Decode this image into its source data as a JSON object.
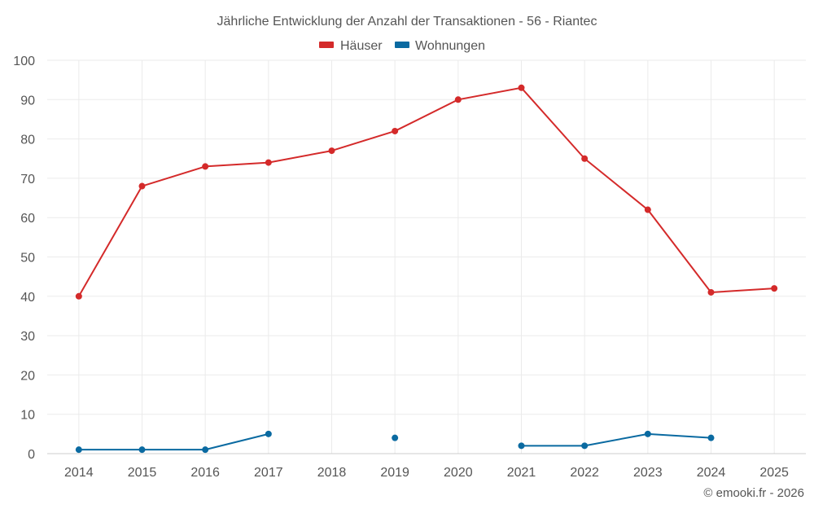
{
  "chart_data": {
    "type": "line",
    "title": "Jährliche Entwicklung der Anzahl der Transaktionen - 56 - Riantec",
    "categories": [
      "2014",
      "2015",
      "2016",
      "2017",
      "2018",
      "2019",
      "2020",
      "2021",
      "2022",
      "2023",
      "2024",
      "2025"
    ],
    "series": [
      {
        "name": "Häuser",
        "color": "#d42a2a",
        "values": [
          40,
          68,
          73,
          74,
          77,
          82,
          90,
          93,
          75,
          62,
          41,
          42
        ]
      },
      {
        "name": "Wohnungen",
        "color": "#0a6aa1",
        "values": [
          1,
          1,
          1,
          5,
          null,
          4,
          null,
          2,
          2,
          5,
          4,
          null
        ]
      }
    ],
    "yticks": [
      0,
      10,
      20,
      30,
      40,
      50,
      60,
      70,
      80,
      90,
      100
    ],
    "ylim": [
      0,
      100
    ],
    "grid": true,
    "legend": "top-center",
    "credit": "© emooki.fr - 2026"
  }
}
